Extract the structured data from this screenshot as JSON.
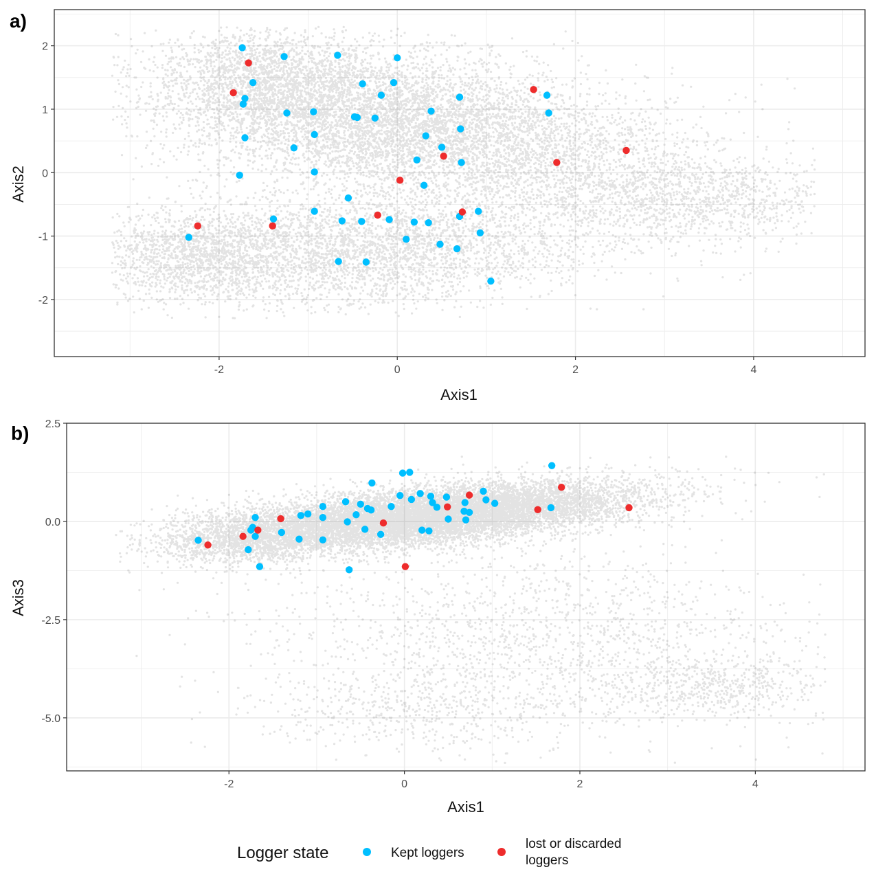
{
  "colors": {
    "kept": "#00BFFF",
    "lost": "#EE2C2C",
    "cloud": "#1a1a1a",
    "grid": "#EBEBEB"
  },
  "legend": {
    "title": "Logger state",
    "items": [
      {
        "label_lines": [
          "Kept loggers"
        ],
        "color": "#00BFFF"
      },
      {
        "label_lines": [
          "lost or discarded",
          "loggers"
        ],
        "color": "#EE2C2C"
      }
    ],
    "placement": "bottom"
  },
  "chart_data": [
    {
      "type": "scatter",
      "panel_label": "a)",
      "xlabel": "Axis1",
      "ylabel": "Axis2",
      "xlim": [
        -3.85,
        5.25
      ],
      "ylim": [
        -2.9,
        2.57
      ],
      "xticks": [
        -2,
        0,
        2,
        4
      ],
      "xtick_labels": [
        "-2",
        "0",
        "2",
        "4"
      ],
      "yticks": [
        -2,
        -1,
        0,
        1,
        2
      ],
      "ytick_labels": [
        "-2",
        "-1",
        "0",
        "1",
        "2"
      ],
      "grid": true,
      "background_cloud": {
        "description_free": true,
        "components": [
          {
            "cx": -0.3,
            "cy": 0.9,
            "sx": 1.2,
            "sy": 0.55,
            "rho": -0.2,
            "w": 0.33
          },
          {
            "cx": -0.4,
            "cy": -1.2,
            "sx": 1.3,
            "sy": 0.45,
            "rho": 0.15,
            "w": 0.25
          },
          {
            "cx": 1.3,
            "cy": 0.3,
            "sx": 1.3,
            "sy": 0.6,
            "rho": -0.3,
            "w": 0.17
          },
          {
            "cx": -1.5,
            "cy": 1.5,
            "sx": 0.6,
            "sy": 0.4,
            "rho": 0.0,
            "w": 0.1
          },
          {
            "cx": 3.3,
            "cy": -0.4,
            "sx": 0.8,
            "sy": 0.35,
            "rho": 0.0,
            "w": 0.07
          },
          {
            "cx": -2.3,
            "cy": -1.3,
            "sx": 0.5,
            "sy": 0.35,
            "rho": 0.0,
            "w": 0.08
          }
        ],
        "xrange": [
          -3.2,
          4.7
        ],
        "yrange": [
          -2.3,
          2.3
        ]
      },
      "series": [
        {
          "name": "Kept loggers",
          "color": "#00BFFF",
          "points": [
            [
              -1.74,
              1.97
            ],
            [
              -1.27,
              1.83
            ],
            [
              -0.67,
              1.85
            ],
            [
              0.0,
              1.81
            ],
            [
              -1.62,
              1.42
            ],
            [
              -0.39,
              1.4
            ],
            [
              -0.04,
              1.42
            ],
            [
              -1.71,
              1.17
            ],
            [
              -1.73,
              1.08
            ],
            [
              -0.18,
              1.22
            ],
            [
              0.7,
              1.19
            ],
            [
              1.68,
              1.22
            ],
            [
              -1.24,
              0.94
            ],
            [
              -0.94,
              0.96
            ],
            [
              -0.48,
              0.88
            ],
            [
              -0.45,
              0.87
            ],
            [
              -0.25,
              0.86
            ],
            [
              0.38,
              0.97
            ],
            [
              1.7,
              0.94
            ],
            [
              -1.71,
              0.55
            ],
            [
              -0.93,
              0.6
            ],
            [
              0.71,
              0.69
            ],
            [
              0.32,
              0.58
            ],
            [
              -1.16,
              0.39
            ],
            [
              0.5,
              0.4
            ],
            [
              0.22,
              0.2
            ],
            [
              0.72,
              0.16
            ],
            [
              -0.93,
              0.01
            ],
            [
              -1.77,
              -0.04
            ],
            [
              0.3,
              -0.2
            ],
            [
              -0.55,
              -0.4
            ],
            [
              -1.39,
              -0.73
            ],
            [
              -0.93,
              -0.61
            ],
            [
              -0.62,
              -0.76
            ],
            [
              -0.4,
              -0.77
            ],
            [
              -0.09,
              -0.74
            ],
            [
              0.19,
              -0.78
            ],
            [
              0.35,
              -0.79
            ],
            [
              0.7,
              -0.69
            ],
            [
              0.91,
              -0.61
            ],
            [
              -2.34,
              -1.02
            ],
            [
              0.1,
              -1.05
            ],
            [
              0.48,
              -1.13
            ],
            [
              0.67,
              -1.2
            ],
            [
              0.93,
              -0.95
            ],
            [
              -0.66,
              -1.4
            ],
            [
              -0.35,
              -1.41
            ],
            [
              1.05,
              -1.71
            ]
          ]
        },
        {
          "name": "lost or discarded loggers",
          "color": "#EE2C2C",
          "points": [
            [
              -1.67,
              1.73
            ],
            [
              -1.84,
              1.26
            ],
            [
              1.53,
              1.31
            ],
            [
              2.57,
              0.35
            ],
            [
              0.52,
              0.26
            ],
            [
              1.79,
              0.16
            ],
            [
              0.03,
              -0.12
            ],
            [
              -0.22,
              -0.67
            ],
            [
              0.73,
              -0.62
            ],
            [
              -1.4,
              -0.84
            ],
            [
              -2.24,
              -0.84
            ]
          ]
        }
      ]
    },
    {
      "type": "scatter",
      "panel_label": "b)",
      "xlabel": "Axis1",
      "ylabel": "Axis3",
      "xlim": [
        -3.85,
        5.25
      ],
      "ylim": [
        -6.35,
        2.5
      ],
      "xticks": [
        -2,
        0,
        2,
        4
      ],
      "xtick_labels": [
        "-2",
        "0",
        "2",
        "4"
      ],
      "yticks": [
        -5,
        -2.5,
        0,
        2.5
      ],
      "ytick_labels": [
        "-5.0",
        "-2.5",
        "0.0",
        "2.5"
      ],
      "grid": true,
      "background_cloud": {
        "components": [
          {
            "cx": 0.3,
            "cy": 0.15,
            "sx": 1.15,
            "sy": 0.42,
            "rho": 0.55,
            "w": 0.72
          },
          {
            "cx": -1.7,
            "cy": -0.4,
            "sx": 0.55,
            "sy": 0.35,
            "rho": 0.2,
            "w": 0.1
          },
          {
            "cx": 1.5,
            "cy": -2.8,
            "sx": 1.6,
            "sy": 1.1,
            "rho": -0.2,
            "w": 0.1
          },
          {
            "cx": 0.2,
            "cy": -4.8,
            "sx": 1.0,
            "sy": 0.55,
            "rho": 0.0,
            "w": 0.04
          },
          {
            "cx": 3.5,
            "cy": -4.2,
            "sx": 0.8,
            "sy": 0.4,
            "rho": 0.0,
            "w": 0.04
          }
        ],
        "xrange": [
          -3.3,
          4.8
        ],
        "yrange": [
          -6.2,
          1.9
        ]
      },
      "series": [
        {
          "name": "Kept loggers",
          "color": "#00BFFF",
          "points": [
            [
              1.68,
              1.42
            ],
            [
              -0.02,
              1.23
            ],
            [
              0.06,
              1.25
            ],
            [
              -0.37,
              0.98
            ],
            [
              0.9,
              0.77
            ],
            [
              0.18,
              0.71
            ],
            [
              -0.05,
              0.66
            ],
            [
              0.3,
              0.64
            ],
            [
              0.48,
              0.62
            ],
            [
              0.08,
              0.56
            ],
            [
              0.93,
              0.55
            ],
            [
              1.03,
              0.46
            ],
            [
              -0.67,
              0.5
            ],
            [
              -0.5,
              0.44
            ],
            [
              0.32,
              0.48
            ],
            [
              0.69,
              0.48
            ],
            [
              -0.42,
              0.33
            ],
            [
              -0.38,
              0.29
            ],
            [
              -0.93,
              0.38
            ],
            [
              0.37,
              0.36
            ],
            [
              0.68,
              0.26
            ],
            [
              0.74,
              0.23
            ],
            [
              1.67,
              0.35
            ],
            [
              -0.15,
              0.38
            ],
            [
              -1.1,
              0.19
            ],
            [
              -1.18,
              0.15
            ],
            [
              -0.55,
              0.17
            ],
            [
              -1.7,
              0.1
            ],
            [
              -0.93,
              0.1
            ],
            [
              0.5,
              0.06
            ],
            [
              0.7,
              0.04
            ],
            [
              -0.65,
              -0.01
            ],
            [
              -1.73,
              -0.15
            ],
            [
              -1.75,
              -0.22
            ],
            [
              -0.45,
              -0.2
            ],
            [
              0.2,
              -0.22
            ],
            [
              0.28,
              -0.24
            ],
            [
              -1.4,
              -0.28
            ],
            [
              -0.27,
              -0.33
            ],
            [
              -1.7,
              -0.38
            ],
            [
              -1.2,
              -0.45
            ],
            [
              -0.93,
              -0.47
            ],
            [
              -2.35,
              -0.48
            ],
            [
              -1.78,
              -0.72
            ],
            [
              -1.65,
              -1.15
            ],
            [
              -0.63,
              -1.23
            ]
          ]
        },
        {
          "name": "lost or discarded loggers",
          "color": "#EE2C2C",
          "points": [
            [
              1.79,
              0.87
            ],
            [
              0.74,
              0.67
            ],
            [
              0.49,
              0.37
            ],
            [
              1.52,
              0.3
            ],
            [
              2.56,
              0.35
            ],
            [
              -1.41,
              0.07
            ],
            [
              -0.24,
              -0.04
            ],
            [
              -1.67,
              -0.22
            ],
            [
              -1.84,
              -0.38
            ],
            [
              -2.24,
              -0.6
            ],
            [
              0.01,
              -1.15
            ]
          ]
        }
      ]
    }
  ]
}
